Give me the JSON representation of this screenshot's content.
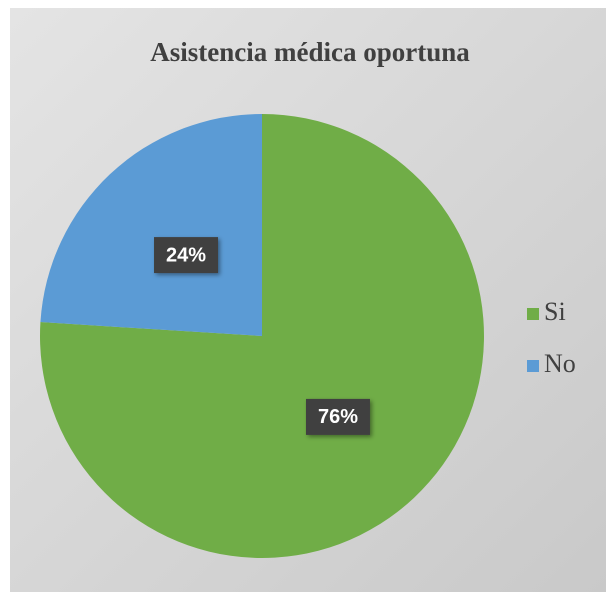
{
  "chart_data": {
    "type": "pie",
    "title": "Asistencia médica oportuna",
    "categories": [
      "Si",
      "No"
    ],
    "values": [
      76,
      24
    ],
    "value_labels": [
      "76%",
      "24%"
    ],
    "colors": [
      "#70ad47",
      "#5b9bd5"
    ],
    "legend": "right"
  }
}
